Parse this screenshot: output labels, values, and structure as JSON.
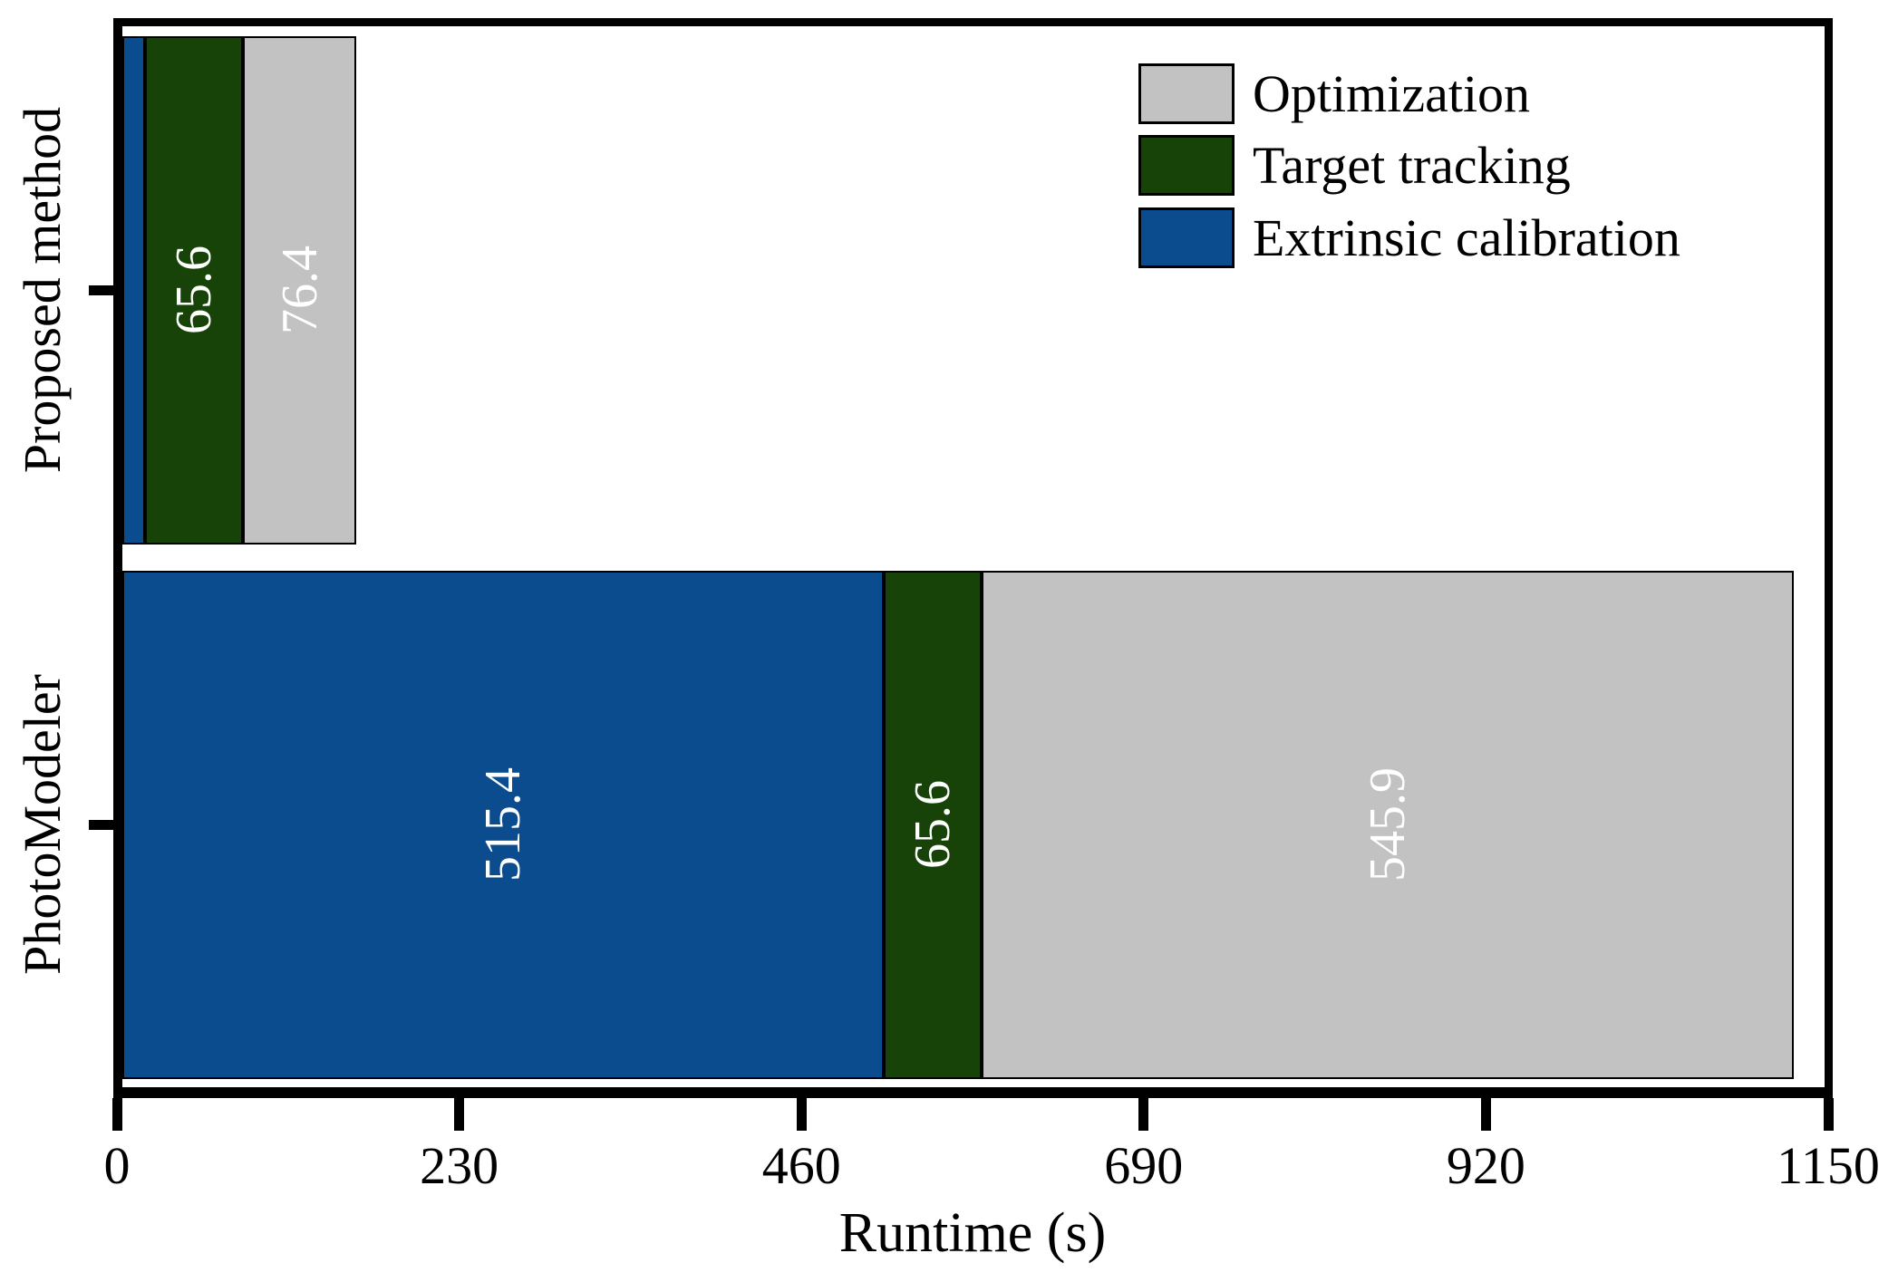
{
  "chart_data": {
    "type": "bar",
    "variant": "horizontal-stacked",
    "xlabel": "Runtime (s)",
    "xlim": [
      0,
      1150
    ],
    "x_ticks": [
      0,
      230,
      460,
      690,
      920,
      1150
    ],
    "grid": false,
    "categories": [
      "Proposed method",
      "PhotoModeler"
    ],
    "series": [
      {
        "name": "Extrinsic calibration",
        "color": "#0a4c8e",
        "values": [
          19.0,
          515.4
        ],
        "bar_labels": [
          "",
          "515.4"
        ]
      },
      {
        "name": "Target tracking",
        "color": "#174309",
        "values": [
          65.6,
          65.6
        ],
        "bar_labels": [
          "65.6",
          "65.6"
        ]
      },
      {
        "name": "Optimization",
        "color": "#c2c2c2",
        "values": [
          76.4,
          545.9
        ],
        "bar_labels": [
          "76.4",
          "545.9"
        ]
      }
    ],
    "legend": {
      "position": "upper-right",
      "entries": [
        {
          "label": "Optimization",
          "color": "#c2c2c2"
        },
        {
          "label": "Target tracking",
          "color": "#174309"
        },
        {
          "label": "Extrinsic calibration",
          "color": "#0a4c8e"
        }
      ]
    },
    "bar_label_color": "#ffffff",
    "frame_color": "#000000"
  }
}
